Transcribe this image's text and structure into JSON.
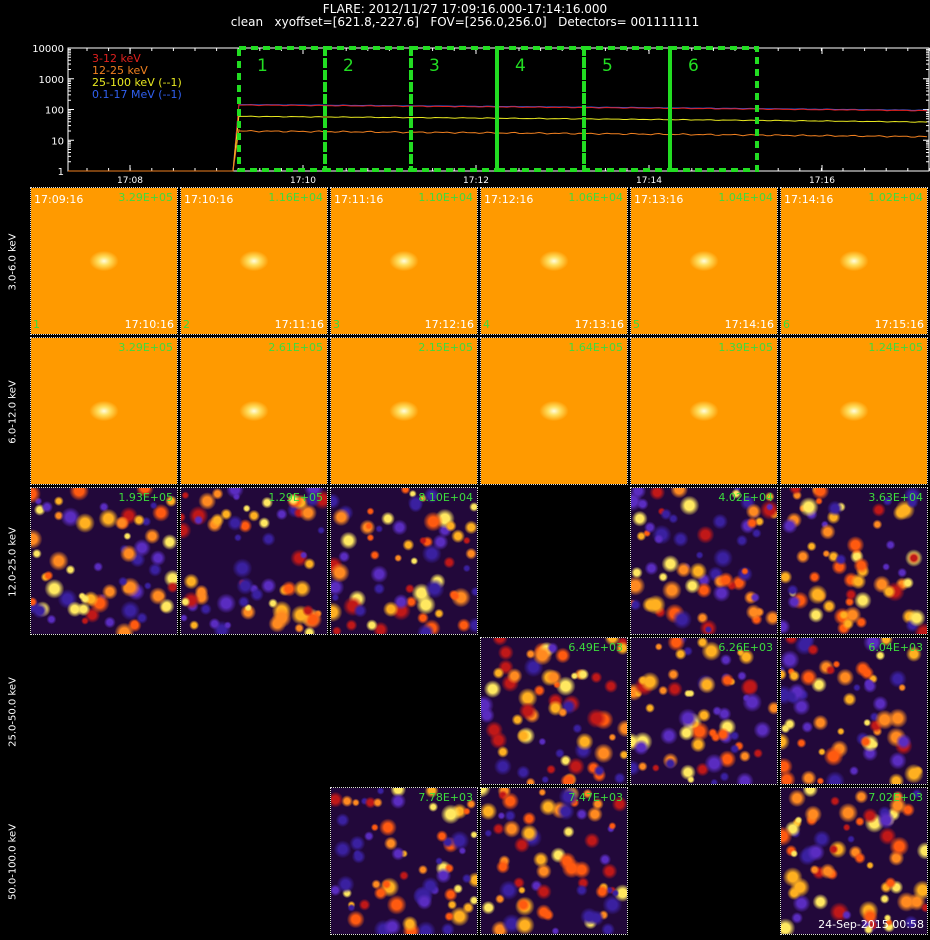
{
  "header": {
    "line1": "FLARE: 2012/11/27 17:09:16.000-17:14:16.000",
    "line2": "clean   xyoffset=[621.8,-227.6]   FOV=[256.0,256.0]   Detectors= 001111111"
  },
  "lightcurve": {
    "y_ticks": [
      "10000",
      "1000",
      "100",
      "10",
      "1"
    ],
    "x_ticks": [
      "17:08",
      "17:10",
      "17:12",
      "17:14",
      "17:16"
    ],
    "legend": [
      {
        "label": "3-12 keV",
        "color": "#e0201e"
      },
      {
        "label": "12-25 keV",
        "color": "#f08020"
      },
      {
        "label": "25-100 keV (--1)",
        "color": "#e8e820"
      },
      {
        "label": "0.1-17 MeV (--1)",
        "color": "#3060f0"
      }
    ],
    "interval_labels": [
      "1",
      "2",
      "3",
      "4",
      "5",
      "6"
    ],
    "interval_color": "#22dd22"
  },
  "energy_bands": [
    "3.0-6.0 keV",
    "6.0-12.0 keV",
    "12.0-25.0 keV",
    "25.0-50.0 keV",
    "50.0-100.0 keV"
  ],
  "rows": [
    {
      "cells": [
        {
          "start": "17:09:16",
          "peak": "3.29E+05",
          "end": "17:10:16",
          "num": "1",
          "style": "source"
        },
        {
          "start": "17:10:16",
          "peak": "1.16E+04",
          "end": "17:11:16",
          "num": "2",
          "style": "source"
        },
        {
          "start": "17:11:16",
          "peak": "1.10E+04",
          "end": "17:12:16",
          "num": "3",
          "style": "source"
        },
        {
          "start": "17:12:16",
          "peak": "1.06E+04",
          "end": "17:13:16",
          "num": "4",
          "style": "source"
        },
        {
          "start": "17:13:16",
          "peak": "1.04E+04",
          "end": "17:14:16",
          "num": "5",
          "style": "source"
        },
        {
          "start": "17:14:16",
          "peak": "1.02E+04",
          "end": "17:15:16",
          "num": "6",
          "style": "source"
        }
      ]
    },
    {
      "cells": [
        {
          "peak": "3.29E+05",
          "style": "source"
        },
        {
          "peak": "2.61E+05",
          "style": "source"
        },
        {
          "peak": "2.15E+05",
          "style": "source"
        },
        {
          "peak": "1.64E+05",
          "style": "source"
        },
        {
          "peak": "1.39E+05",
          "style": "source"
        },
        {
          "peak": "1.24E+05",
          "style": "source"
        }
      ]
    },
    {
      "cells": [
        {
          "peak": "1.93E+05",
          "style": "noise"
        },
        {
          "peak": "1.29E+05",
          "style": "noise"
        },
        {
          "peak": "8.10E+04",
          "style": "noise"
        },
        {
          "style": "empty"
        },
        {
          "peak": "4.02E+04",
          "style": "noise"
        },
        {
          "peak": "3.63E+04",
          "style": "noise"
        }
      ]
    },
    {
      "cells": [
        {
          "style": "empty"
        },
        {
          "style": "empty"
        },
        {
          "style": "empty"
        },
        {
          "peak": "6.49E+03",
          "style": "noise"
        },
        {
          "peak": "6.26E+03",
          "style": "noise"
        },
        {
          "peak": "6.04E+03",
          "style": "noise"
        }
      ]
    },
    {
      "cells": [
        {
          "style": "empty"
        },
        {
          "style": "empty"
        },
        {
          "peak": "7.78E+03",
          "style": "noise"
        },
        {
          "peak": "7.47E+03",
          "style": "noise"
        },
        {
          "style": "empty"
        },
        {
          "peak": "7.02E+03",
          "style": "noise"
        }
      ]
    }
  ],
  "footer_date": "24-Sep-2015 00:58"
}
